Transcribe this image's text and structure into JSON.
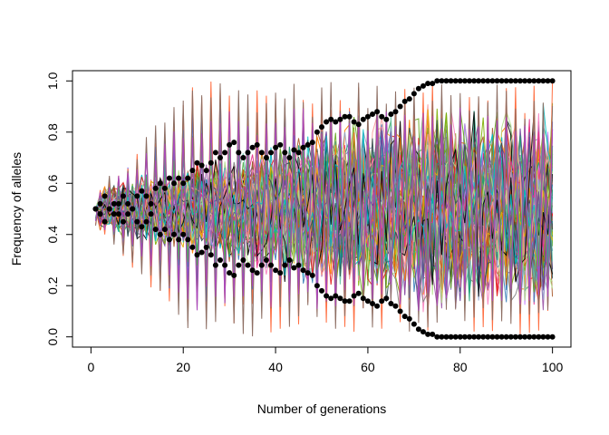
{
  "chart_data": {
    "type": "line",
    "title": "",
    "xlabel": "Number of generations",
    "ylabel": "Frequency of alleles",
    "xlim": [
      -4,
      104
    ],
    "ylim": [
      -0.04,
      1.04
    ],
    "x_ticks": [
      {
        "value": 0,
        "label": "0"
      },
      {
        "value": 20,
        "label": "20"
      },
      {
        "value": 40,
        "label": "40"
      },
      {
        "value": 60,
        "label": "60"
      },
      {
        "value": 80,
        "label": "80"
      },
      {
        "value": 100,
        "label": "100"
      }
    ],
    "y_ticks": [
      {
        "value": 0.0,
        "label": "0.0"
      },
      {
        "value": 0.2,
        "label": "0.2"
      },
      {
        "value": 0.4,
        "label": "0.4"
      },
      {
        "value": 0.6,
        "label": "0.6"
      },
      {
        "value": 0.8,
        "label": "0.8"
      },
      {
        "value": 1.0,
        "label": "1.0"
      }
    ],
    "grid": false,
    "legend": "none",
    "palette": [
      "#e41a1c",
      "#377eb8",
      "#4daf4a",
      "#984ea3",
      "#ff7f00",
      "#a65628",
      "#f781bf",
      "#66c2a5",
      "#8da0cb",
      "#1b9e77",
      "#d95f02",
      "#7570b3",
      "#e7298a",
      "#66a61e",
      "#e6ab02",
      "#b2df8a",
      "#6a3d9a",
      "#fb9a99",
      "#808080",
      "#2f4f4f",
      "#000000",
      "#00bfc4",
      "#c77cff",
      "#7cae00"
    ],
    "series": [
      {
        "style": "points",
        "color": "#000000",
        "x": [
          1,
          2,
          3,
          4,
          5,
          6,
          7,
          8,
          9,
          10,
          11,
          12,
          13,
          14,
          15,
          16,
          17,
          18,
          19,
          20,
          21,
          22,
          23,
          24,
          25,
          26,
          27,
          28,
          29,
          30,
          31,
          32,
          33,
          34,
          35,
          36,
          37,
          38,
          39,
          40,
          41,
          42,
          43,
          44,
          45,
          46,
          47,
          48,
          49,
          50,
          51,
          52,
          53,
          54,
          55,
          56,
          57,
          58,
          59,
          60,
          61,
          62,
          63,
          64,
          65,
          66,
          67,
          68,
          69,
          70,
          71,
          72,
          73,
          74,
          75,
          76,
          77,
          78,
          79,
          80,
          81,
          82,
          83,
          84,
          85,
          86,
          87,
          88,
          89,
          90,
          91,
          92,
          93,
          94,
          95,
          96,
          97,
          98,
          99,
          100
        ],
        "y": [
          0.5,
          0.52,
          0.55,
          0.5,
          0.48,
          0.52,
          0.55,
          0.52,
          0.5,
          0.55,
          0.57,
          0.55,
          0.52,
          0.58,
          0.6,
          0.58,
          0.62,
          0.6,
          0.62,
          0.6,
          0.62,
          0.65,
          0.68,
          0.67,
          0.65,
          0.68,
          0.72,
          0.7,
          0.72,
          0.75,
          0.76,
          0.72,
          0.7,
          0.72,
          0.74,
          0.75,
          0.72,
          0.7,
          0.72,
          0.74,
          0.75,
          0.72,
          0.7,
          0.73,
          0.72,
          0.74,
          0.75,
          0.76,
          0.8,
          0.82,
          0.84,
          0.85,
          0.84,
          0.85,
          0.86,
          0.86,
          0.84,
          0.83,
          0.85,
          0.86,
          0.87,
          0.88,
          0.86,
          0.85,
          0.87,
          0.88,
          0.9,
          0.92,
          0.93,
          0.95,
          0.97,
          0.98,
          0.99,
          0.99,
          1.0,
          1.0,
          1.0,
          1.0,
          1.0,
          1.0,
          1.0,
          1.0,
          1.0,
          1.0,
          1.0,
          1.0,
          1.0,
          1.0,
          1.0,
          1.0,
          1.0,
          1.0,
          1.0,
          1.0,
          1.0,
          1.0,
          1.0,
          1.0,
          1.0,
          1.0
        ]
      },
      {
        "style": "points",
        "color": "#000000",
        "x": [
          1,
          2,
          3,
          4,
          5,
          6,
          7,
          8,
          9,
          10,
          11,
          12,
          13,
          14,
          15,
          16,
          17,
          18,
          19,
          20,
          21,
          22,
          23,
          24,
          25,
          26,
          27,
          28,
          29,
          30,
          31,
          32,
          33,
          34,
          35,
          36,
          37,
          38,
          39,
          40,
          41,
          42,
          43,
          44,
          45,
          46,
          47,
          48,
          49,
          50,
          51,
          52,
          53,
          54,
          55,
          56,
          57,
          58,
          59,
          60,
          61,
          62,
          63,
          64,
          65,
          66,
          67,
          68,
          69,
          70,
          71,
          72,
          73,
          74,
          75,
          76,
          77,
          78,
          79,
          80,
          81,
          82,
          83,
          84,
          85,
          86,
          87,
          88,
          89,
          90,
          91,
          92,
          93,
          94,
          95,
          96,
          97,
          98,
          99,
          100
        ],
        "y": [
          0.5,
          0.48,
          0.45,
          0.5,
          0.52,
          0.48,
          0.45,
          0.48,
          0.5,
          0.45,
          0.43,
          0.45,
          0.48,
          0.42,
          0.4,
          0.42,
          0.38,
          0.4,
          0.38,
          0.4,
          0.38,
          0.35,
          0.32,
          0.33,
          0.35,
          0.32,
          0.28,
          0.3,
          0.28,
          0.25,
          0.24,
          0.28,
          0.3,
          0.28,
          0.26,
          0.25,
          0.28,
          0.3,
          0.28,
          0.26,
          0.25,
          0.28,
          0.3,
          0.27,
          0.28,
          0.26,
          0.25,
          0.24,
          0.2,
          0.18,
          0.16,
          0.15,
          0.16,
          0.15,
          0.14,
          0.14,
          0.16,
          0.17,
          0.15,
          0.14,
          0.13,
          0.12,
          0.14,
          0.15,
          0.13,
          0.12,
          0.1,
          0.08,
          0.07,
          0.05,
          0.03,
          0.02,
          0.01,
          0.01,
          0.0,
          0.0,
          0.0,
          0.0,
          0.0,
          0.0,
          0.0,
          0.0,
          0.0,
          0.0,
          0.0,
          0.0,
          0.0,
          0.0,
          0.0,
          0.0,
          0.0,
          0.0,
          0.0,
          0.0,
          0.0,
          0.0,
          0.0,
          0.0,
          0.0,
          0.0
        ]
      }
    ]
  }
}
